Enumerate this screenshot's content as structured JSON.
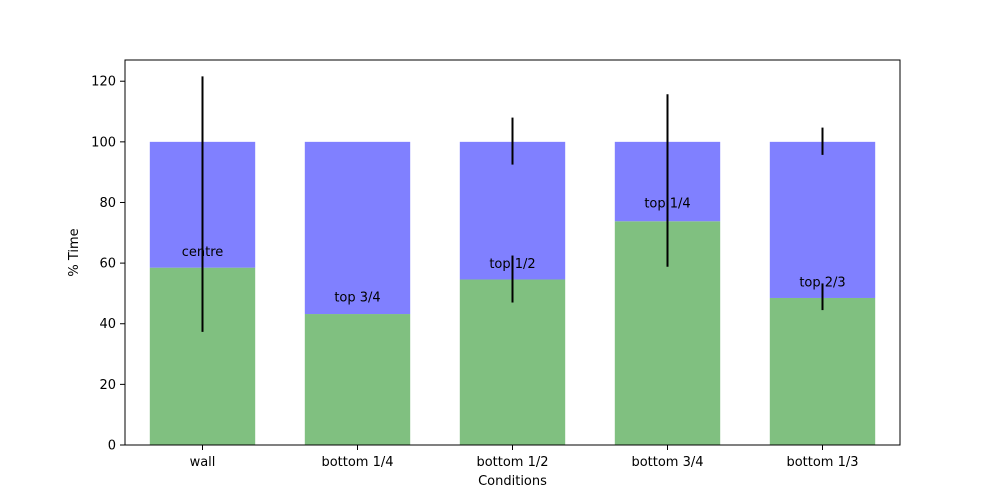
{
  "chart_data": {
    "type": "bar",
    "stacked": true,
    "categories": [
      "wall",
      "bottom 1/4",
      "bottom 1/2",
      "bottom 3/4",
      "bottom 1/3"
    ],
    "xlabel": "Conditions",
    "ylabel": "% Time",
    "ylim": [
      0,
      127
    ],
    "yticks": [
      0,
      20,
      40,
      60,
      80,
      100,
      120
    ],
    "grid": false,
    "series": [
      {
        "values": [
          58.5,
          43.2,
          54.6,
          73.8,
          48.5
        ],
        "color": "#80c080"
      },
      {
        "values": [
          41.5,
          56.8,
          45.4,
          26.2,
          51.5
        ],
        "color": "#8080ff"
      }
    ],
    "annotations": [
      {
        "category": "wall",
        "text": "centre",
        "y": 64
      },
      {
        "category": "bottom 1/4",
        "text": "top 3/4",
        "y": 49
      },
      {
        "category": "bottom 1/2",
        "text": "top 1/2",
        "y": 60
      },
      {
        "category": "bottom 3/4",
        "text": "top 1/4",
        "y": 80
      },
      {
        "category": "bottom 1/3",
        "text": "top 2/3",
        "y": 54
      }
    ],
    "error_bars": [
      {
        "category": "wall",
        "low": 37.3,
        "high": 121.6
      },
      {
        "category": "bottom 1/2",
        "low": 47.0,
        "high": 62.5
      },
      {
        "category": "bottom 1/2",
        "low": 92.5,
        "high": 108.0
      },
      {
        "category": "bottom 3/4",
        "low": 58.8,
        "high": 115.7
      },
      {
        "category": "bottom 1/3",
        "low": 44.5,
        "high": 53.3
      },
      {
        "category": "bottom 1/3",
        "low": 95.7,
        "high": 104.7
      }
    ],
    "error_bar_color": "#000000"
  }
}
